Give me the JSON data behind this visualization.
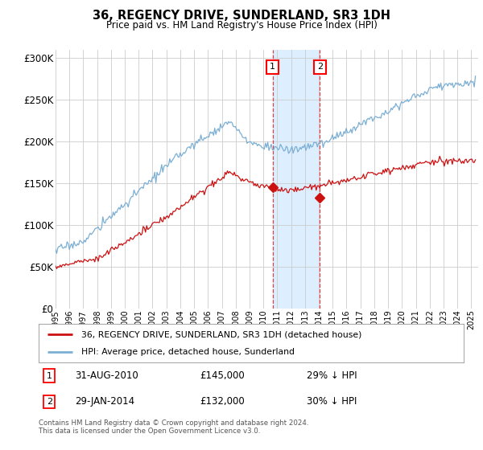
{
  "title": "36, REGENCY DRIVE, SUNDERLAND, SR3 1DH",
  "subtitle": "Price paid vs. HM Land Registry's House Price Index (HPI)",
  "ylabel_ticks": [
    "£0",
    "£50K",
    "£100K",
    "£150K",
    "£200K",
    "£250K",
    "£300K"
  ],
  "ytick_values": [
    0,
    50000,
    100000,
    150000,
    200000,
    250000,
    300000
  ],
  "ylim": [
    0,
    310000
  ],
  "xlim_start": 1995.0,
  "xlim_end": 2025.5,
  "hpi_color": "#7bafd4",
  "price_color": "#cc1111",
  "sale1_date": 2010.667,
  "sale1_price": 145000,
  "sale1_label": "1",
  "sale2_date": 2014.083,
  "sale2_price": 132000,
  "sale2_label": "2",
  "legend_line1": "36, REGENCY DRIVE, SUNDERLAND, SR3 1DH (detached house)",
  "legend_line2": "HPI: Average price, detached house, Sunderland",
  "note1_label": "1",
  "note1_date": "31-AUG-2010",
  "note1_price": "£145,000",
  "note1_pct": "29% ↓ HPI",
  "note2_label": "2",
  "note2_date": "29-JAN-2014",
  "note2_price": "£132,000",
  "note2_pct": "30% ↓ HPI",
  "footer": "Contains HM Land Registry data © Crown copyright and database right 2024.\nThis data is licensed under the Open Government Licence v3.0.",
  "background_color": "#ffffff",
  "shade_color": "#ddeeff"
}
